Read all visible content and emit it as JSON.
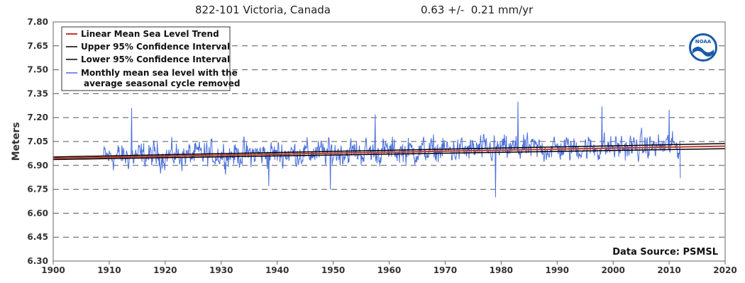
{
  "header": {
    "station": "822-101 Victoria, Canada",
    "trend": "0.63 +/-  0.21 mm/yr"
  },
  "chart_data": {
    "type": "line",
    "ylabel": "Meters",
    "xlabel": "",
    "xlim": [
      1900,
      2020
    ],
    "ylim": [
      6.3,
      7.8
    ],
    "x_ticks": [
      1900,
      1910,
      1920,
      1930,
      1940,
      1950,
      1960,
      1970,
      1980,
      1990,
      2000,
      2010,
      2020
    ],
    "y_ticks": [
      "6.30",
      "6.45",
      "6.60",
      "6.75",
      "6.90",
      "7.05",
      "7.20",
      "7.35",
      "7.50",
      "7.65",
      "7.80"
    ],
    "grid": "horizontal dashed",
    "legend_position": "top-left",
    "source": "Data Source: PSMSL",
    "logo": "noaa-logo",
    "series": [
      {
        "name": "Linear Mean Sea Level Trend",
        "color": "#c0392b",
        "x": [
          1900,
          2020
        ],
        "y": [
          6.945,
          7.021
        ]
      },
      {
        "name": "Upper 95% Confidence Interval",
        "color": "#000000",
        "x": [
          1900,
          2020
        ],
        "y": [
          6.953,
          7.037
        ]
      },
      {
        "name": "Lower 95% Confidence Interval",
        "color": "#000000",
        "x": [
          1900,
          2020
        ],
        "y": [
          6.937,
          7.005
        ]
      },
      {
        "name": "Monthly mean sea level with the average seasonal cycle removed",
        "color": "#4a6fdc",
        "x_start": 1909.0,
        "x_end": 2012.0,
        "approx_mean_at_start": 6.955,
        "approx_mean_at_end": 7.02,
        "notable_points": [
          {
            "x": 1914.0,
            "y": 7.26
          },
          {
            "x": 1938.5,
            "y": 6.77
          },
          {
            "x": 1949.5,
            "y": 6.75
          },
          {
            "x": 1957.5,
            "y": 7.22
          },
          {
            "x": 1979.0,
            "y": 6.7
          },
          {
            "x": 1983.0,
            "y": 7.3
          },
          {
            "x": 1998.0,
            "y": 7.27
          },
          {
            "x": 2010.0,
            "y": 7.25
          },
          {
            "x": 2012.0,
            "y": 6.82
          }
        ]
      }
    ]
  }
}
